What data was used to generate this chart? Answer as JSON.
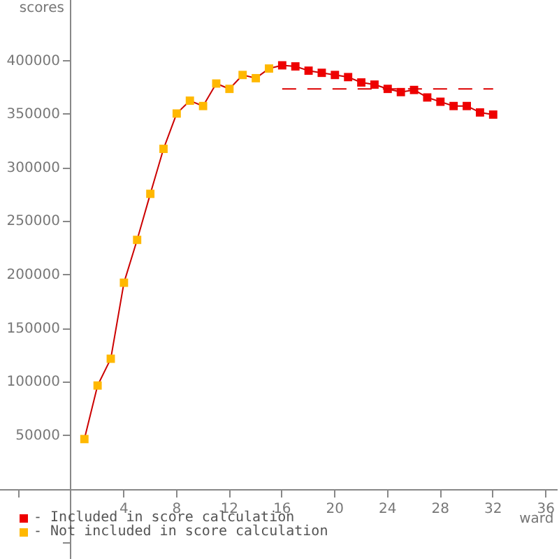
{
  "chart_data": {
    "type": "line",
    "xlabel": "ward",
    "ylabel": "scores",
    "xlim": [
      -5.4,
      36.8
    ],
    "ylim": [
      -65000,
      457000
    ],
    "xticks": [
      {
        "value": -4,
        "label": null
      },
      4,
      8,
      12,
      16,
      20,
      24,
      28,
      32,
      36
    ],
    "yticks": [
      {
        "value": -50000,
        "label": null
      },
      50000,
      100000,
      150000,
      200000,
      250000,
      300000,
      350000,
      400000
    ],
    "grid": false,
    "legend": "bottom left",
    "series": [
      {
        "color": "#cc0000",
        "marker": "none",
        "x": [
          1,
          2,
          3,
          4,
          5,
          6,
          7,
          8,
          9,
          10,
          11,
          12,
          13,
          14,
          15,
          16,
          17,
          18,
          19,
          20,
          21,
          22,
          23,
          24,
          25,
          26,
          27,
          28,
          29,
          30,
          31,
          32
        ],
        "values": [
          47000,
          97000,
          122000,
          193000,
          233000,
          276000,
          318000,
          351000,
          363000,
          358000,
          379000,
          374000,
          387000,
          384000,
          393000,
          396000,
          395000,
          391000,
          389000,
          387000,
          385000,
          380000,
          378000,
          374000,
          371000,
          373000,
          366000,
          362000,
          358000,
          358000,
          352000,
          350000
        ]
      },
      {
        "type": "scatter",
        "name": "- Included in score calculation",
        "color": "#ee0000",
        "marker": "square",
        "x": [
          16,
          17,
          18,
          19,
          20,
          21,
          22,
          23,
          24,
          25,
          26,
          27,
          28,
          29,
          30,
          31,
          32
        ],
        "values": [
          396000,
          395000,
          391000,
          389000,
          387000,
          385000,
          380000,
          378000,
          374000,
          371000,
          373000,
          366000,
          362000,
          358000,
          358000,
          352000,
          350000
        ]
      },
      {
        "type": "scatter",
        "name": "- Not included in score calculation",
        "color": "#ffb800",
        "marker": "square",
        "x": [
          1,
          2,
          3,
          4,
          5,
          6,
          7,
          8,
          9,
          10,
          11,
          12,
          13,
          14,
          15
        ],
        "values": [
          47000,
          97000,
          122000,
          193000,
          233000,
          276000,
          318000,
          351000,
          363000,
          358000,
          379000,
          374000,
          387000,
          384000,
          393000
        ]
      },
      {
        "color": "#dd0000",
        "marker": "none",
        "line_style": "dashed",
        "x": [
          16,
          32
        ],
        "values": [
          374000,
          374000
        ]
      }
    ]
  }
}
